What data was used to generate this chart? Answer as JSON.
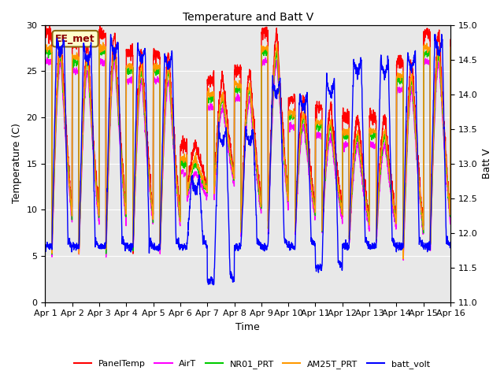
{
  "title": "Temperature and Batt V",
  "xlabel": "Time",
  "ylabel_left": "Temperature (C)",
  "ylabel_right": "Batt V",
  "ylim_left": [
    0,
    30
  ],
  "ylim_right": [
    11.0,
    15.0
  ],
  "xlim": [
    0,
    15
  ],
  "xtick_labels": [
    "Apr 1",
    "Apr 2",
    "Apr 3",
    "Apr 4",
    "Apr 5",
    "Apr 6",
    "Apr 7",
    "Apr 8",
    "Apr 9",
    "Apr 10",
    "Apr 11",
    "Apr 12",
    "Apr 13",
    "Apr 14",
    "Apr 15",
    "Apr 16"
  ],
  "yticks_left": [
    0,
    5,
    10,
    15,
    20,
    25,
    30
  ],
  "yticks_right": [
    11.0,
    11.5,
    12.0,
    12.5,
    13.0,
    13.5,
    14.0,
    14.5,
    15.0
  ],
  "colors": {
    "PanelTemp": "#ff0000",
    "AirT": "#ff00ff",
    "NR01_PRT": "#00cc00",
    "AM25T_PRT": "#ff9900",
    "batt_volt": "#0000ff"
  },
  "legend_labels": [
    "PanelTemp",
    "AirT",
    "NR01_PRT",
    "AM25T_PRT",
    "batt_volt"
  ],
  "annotation_text": "EE_met",
  "annotation_color": "#8b0000",
  "annotation_bg": "#ffffcc",
  "annotation_border": "#8b6914",
  "plot_bg": "#e8e8e8",
  "grid_color": "#ffffff",
  "line_width": 1.0,
  "figsize": [
    6.4,
    4.8
  ],
  "dpi": 100,
  "title_fontsize": 10,
  "axis_fontsize": 9,
  "tick_fontsize": 8,
  "xtick_fontsize": 7.5,
  "legend_fontsize": 8
}
